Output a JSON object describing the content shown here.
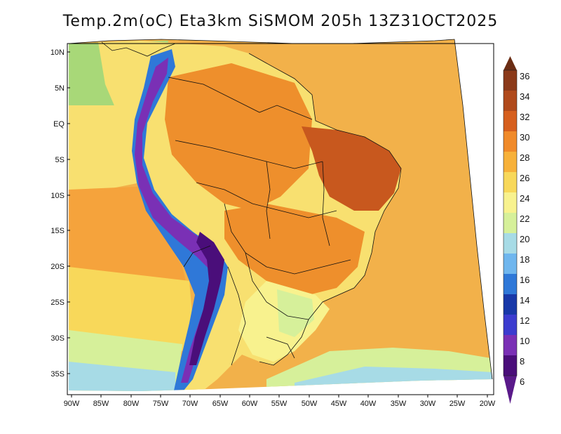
{
  "title": "Temp.2m(oC) Eta3km SiSMOM 205h 13Z31OCT2025",
  "units": "oC",
  "y_axis_labels": [
    "10N",
    "5N",
    "EQ",
    "5S",
    "10S",
    "15S",
    "20S",
    "25S",
    "30S",
    "35S"
  ],
  "x_axis_labels": [
    "90W",
    "85W",
    "80W",
    "75W",
    "70W",
    "65W",
    "60W",
    "55W",
    "50W",
    "45W",
    "40W",
    "35W",
    "30W",
    "25W",
    "20W"
  ],
  "colorbar": {
    "labels": [
      "36",
      "34",
      "32",
      "30",
      "28",
      "26",
      "24",
      "22",
      "20",
      "18",
      "16",
      "14",
      "12",
      "10",
      "8",
      "6"
    ],
    "colors": [
      "#6b2d14",
      "#8b3a1a",
      "#b04a1c",
      "#d65f1e",
      "#f08a2a",
      "#f7b13a",
      "#f8d85a",
      "#f8f28e",
      "#d6f09a",
      "#a7dbe6",
      "#6fb6ee",
      "#2f78d8",
      "#1838a8",
      "#3c3ccf",
      "#7a30b5",
      "#4a0e7a",
      "#5a1a8a"
    ]
  },
  "regions": {
    "atlantic_ocean": "#f2b14a",
    "pacific_north": "#a8d878",
    "pacific_equatorial": "#f8e070",
    "pacific_central": "#f5a33c",
    "pacific_south": "#f8d85a",
    "south_coast_cool": "#d6f09a",
    "south_coast_colder": "#a7dbe6",
    "amazon_hot": "#ee8f2c",
    "northeast_hot": "#c8581e",
    "andes_cold": "#7a30b5",
    "andes_colder": "#4a0e7a",
    "andes_mid": "#2f78d8",
    "south_brazil_mild": "#f8f28e"
  }
}
